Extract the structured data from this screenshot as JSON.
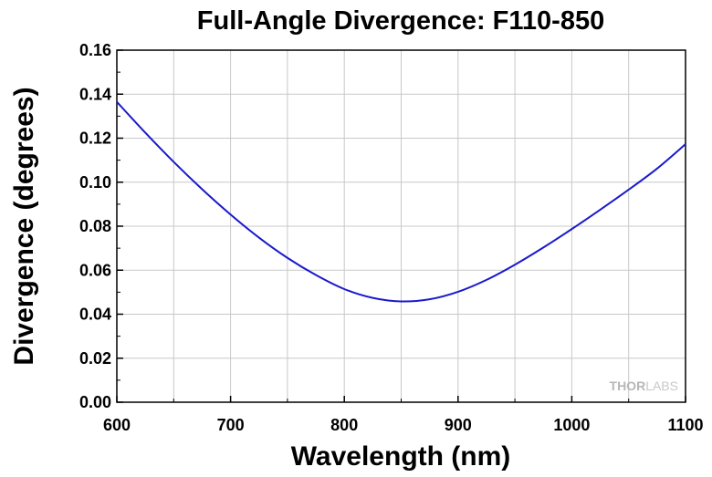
{
  "chart_data": {
    "type": "line",
    "title": "Full-Angle Divergence: F110-850",
    "xlabel": "Wavelength (nm)",
    "ylabel": "Divergence (degrees)",
    "xlim": [
      600,
      1100
    ],
    "ylim": [
      0,
      0.16
    ],
    "x_ticks": [
      600,
      700,
      800,
      900,
      1000,
      1100
    ],
    "x_tick_labels": [
      "600",
      "700",
      "800",
      "900",
      "1000",
      "1100"
    ],
    "y_ticks": [
      0,
      0.02,
      0.04,
      0.06,
      0.08,
      0.1,
      0.12,
      0.14,
      0.16
    ],
    "y_tick_labels": [
      "0.00",
      "0.02",
      "0.04",
      "0.06",
      "0.08",
      "0.10",
      "0.12",
      "0.14",
      "0.16"
    ],
    "grid": true,
    "legend": "none",
    "series": [
      {
        "color": "#1a1acc",
        "x": [
          600,
          625,
          650,
          675,
          700,
          725,
          750,
          775,
          800,
          825,
          850,
          875,
          900,
          925,
          950,
          975,
          1000,
          1025,
          1050,
          1075,
          1100
        ],
        "y": [
          0.1365,
          0.1225,
          0.1092,
          0.0968,
          0.0853,
          0.0748,
          0.0656,
          0.0578,
          0.0514,
          0.0474,
          0.0458,
          0.0468,
          0.0502,
          0.0556,
          0.0625,
          0.0703,
          0.0787,
          0.0875,
          0.0966,
          0.1062,
          0.1173
        ]
      }
    ]
  },
  "watermark": {
    "part1": "THOR",
    "part2": "LABS"
  },
  "colors": {
    "line": "#1a1acc",
    "grid": "#c8c8c8",
    "axis": "#000000"
  }
}
